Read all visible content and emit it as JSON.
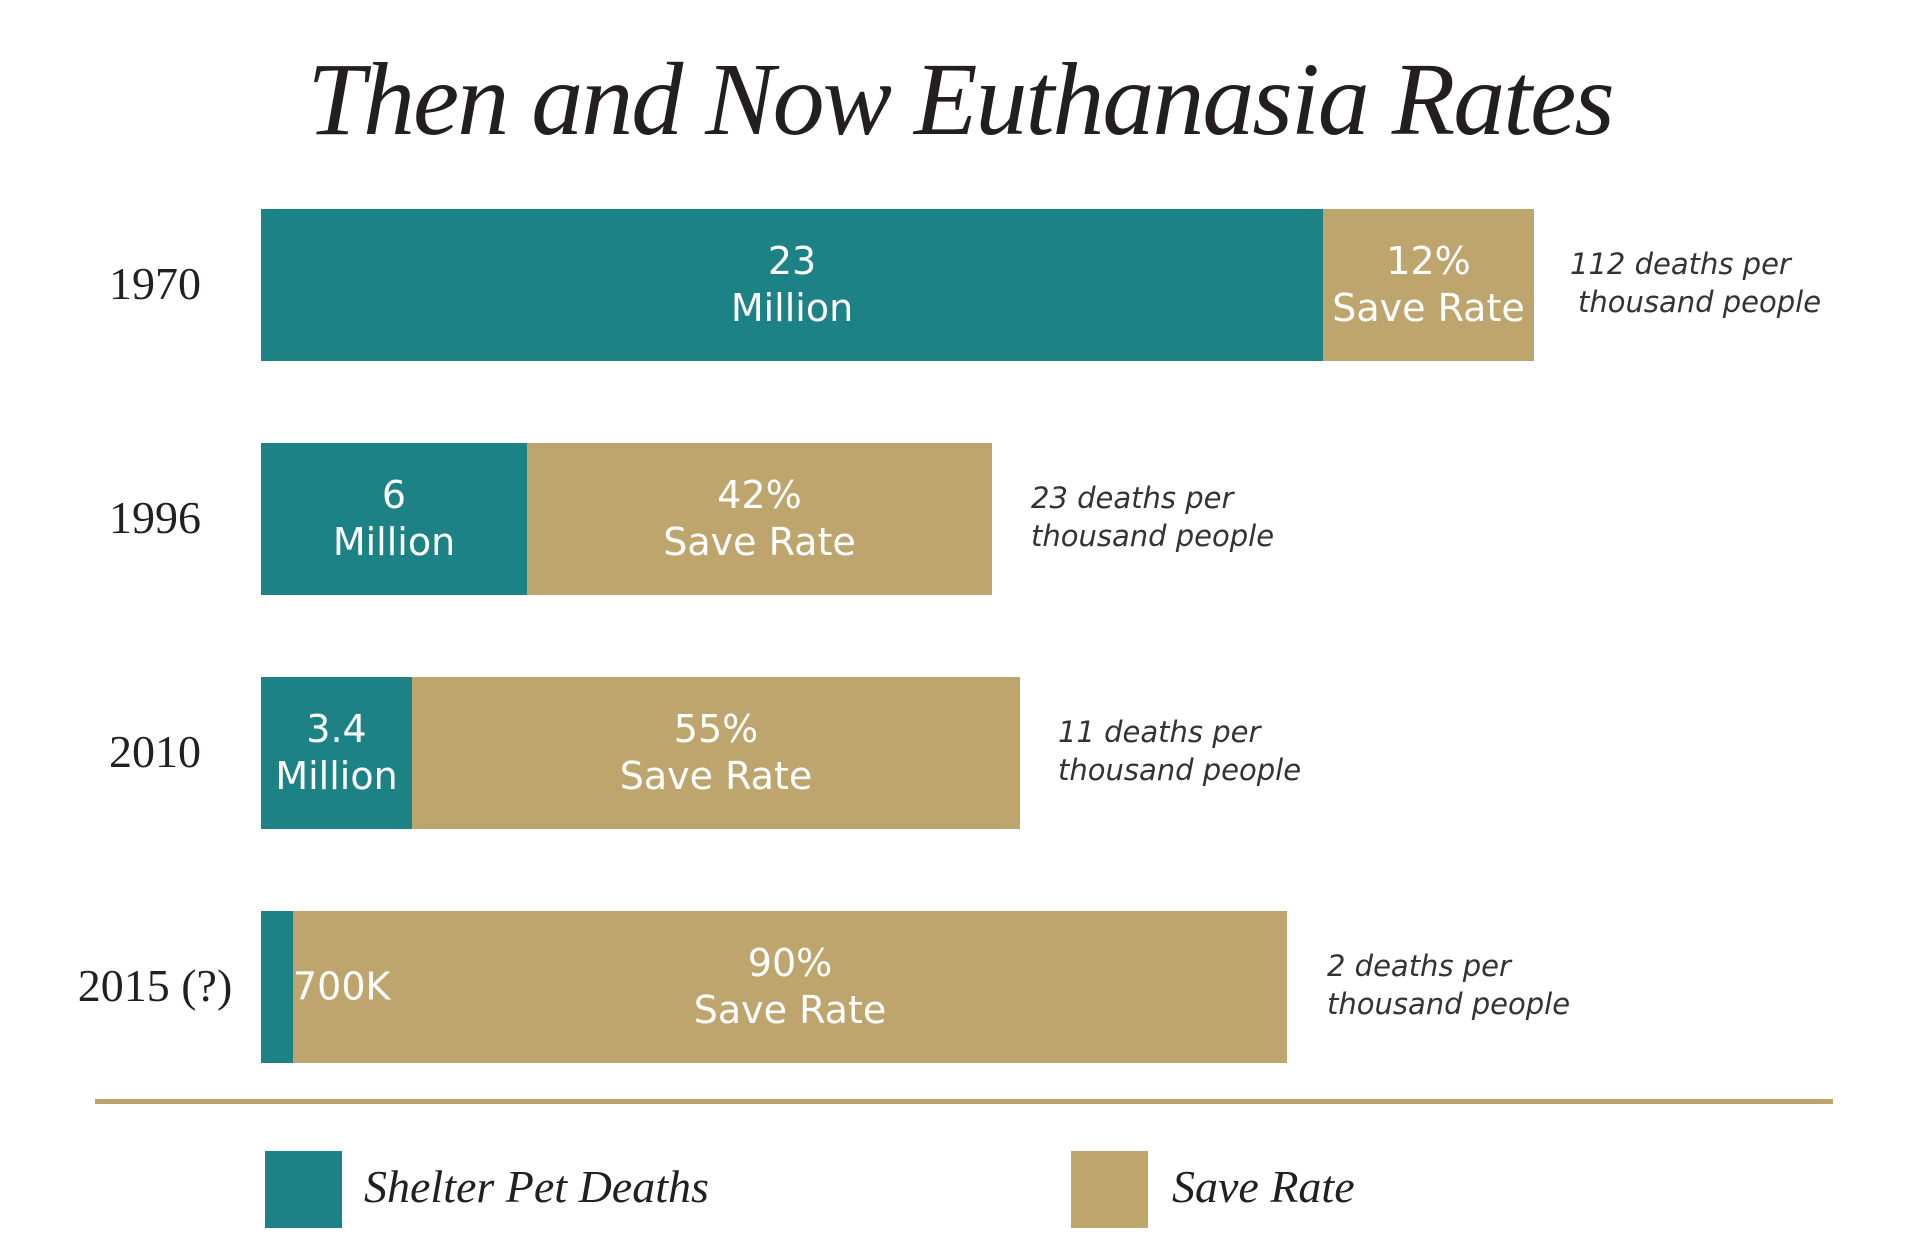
{
  "chart_data": {
    "type": "bar",
    "stacked": true,
    "orientation": "horizontal",
    "title": "Then and Now Euthanasia Rates",
    "categories": [
      "1970",
      "1996",
      "2010",
      "2015 (?)"
    ],
    "series": [
      {
        "name": "Shelter Pet Deaths",
        "color": "#1c8285",
        "labels": [
          [
            "23",
            "Million"
          ],
          [
            "6",
            "Million"
          ],
          [
            "3.4",
            "Million"
          ],
          [
            "700K",
            ""
          ]
        ],
        "values_millions": [
          23,
          6,
          3.4,
          0.7
        ]
      },
      {
        "name": "Save Rate",
        "color": "#bea56e",
        "labels": [
          [
            "12%",
            "Save Rate"
          ],
          [
            "42%",
            "Save Rate"
          ],
          [
            "55%",
            "Save Rate"
          ],
          [
            "90%",
            "Save Rate"
          ]
        ],
        "values_percent": [
          12,
          42,
          55,
          90
        ]
      }
    ],
    "annotations": [
      [
        "112 deaths per",
        "thousand people"
      ],
      [
        "23 deaths per",
        "thousand people"
      ],
      [
        "11 deaths per",
        "thousand people"
      ],
      [
        "2 deaths per",
        "thousand people"
      ]
    ],
    "legend": {
      "placement": "bottom",
      "items": [
        "Shelter Pet Deaths",
        "Save Rate"
      ]
    }
  }
}
